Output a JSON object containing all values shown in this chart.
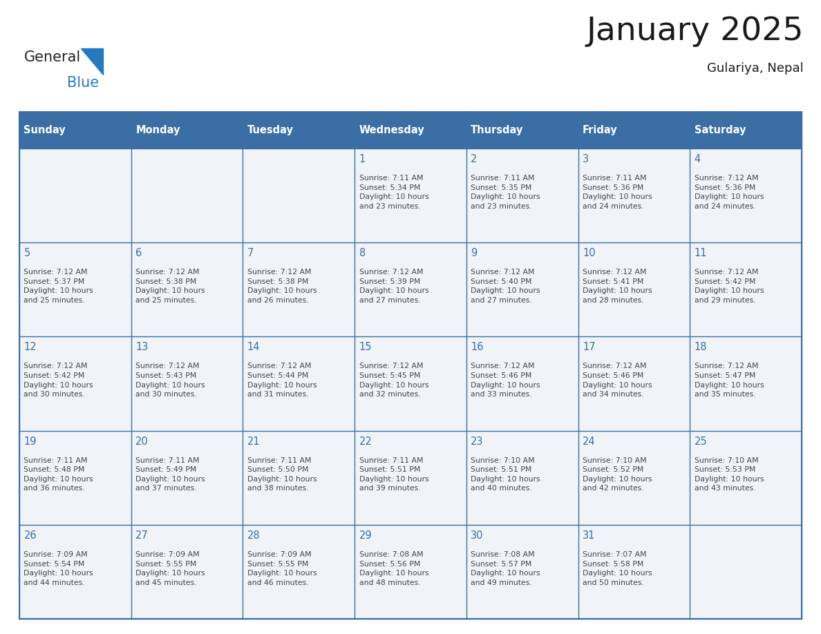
{
  "title": "January 2025",
  "subtitle": "Gulariya, Nepal",
  "days_of_week": [
    "Sunday",
    "Monday",
    "Tuesday",
    "Wednesday",
    "Thursday",
    "Friday",
    "Saturday"
  ],
  "header_bg_color": "#3A6EA5",
  "header_text_color": "#FFFFFF",
  "cell_bg_color": "#F0F4F8",
  "grid_line_color": "#3A6EA5",
  "day_number_color": "#3A6EA5",
  "text_color": "#444444",
  "title_color": "#1a1a1a",
  "logo_general_color": "#222222",
  "logo_blue_color": "#2878BE",
  "calendar_data": [
    [
      {
        "day": null,
        "info": null
      },
      {
        "day": null,
        "info": null
      },
      {
        "day": null,
        "info": null
      },
      {
        "day": 1,
        "info": "Sunrise: 7:11 AM\nSunset: 5:34 PM\nDaylight: 10 hours\nand 23 minutes."
      },
      {
        "day": 2,
        "info": "Sunrise: 7:11 AM\nSunset: 5:35 PM\nDaylight: 10 hours\nand 23 minutes."
      },
      {
        "day": 3,
        "info": "Sunrise: 7:11 AM\nSunset: 5:36 PM\nDaylight: 10 hours\nand 24 minutes."
      },
      {
        "day": 4,
        "info": "Sunrise: 7:12 AM\nSunset: 5:36 PM\nDaylight: 10 hours\nand 24 minutes."
      }
    ],
    [
      {
        "day": 5,
        "info": "Sunrise: 7:12 AM\nSunset: 5:37 PM\nDaylight: 10 hours\nand 25 minutes."
      },
      {
        "day": 6,
        "info": "Sunrise: 7:12 AM\nSunset: 5:38 PM\nDaylight: 10 hours\nand 25 minutes."
      },
      {
        "day": 7,
        "info": "Sunrise: 7:12 AM\nSunset: 5:38 PM\nDaylight: 10 hours\nand 26 minutes."
      },
      {
        "day": 8,
        "info": "Sunrise: 7:12 AM\nSunset: 5:39 PM\nDaylight: 10 hours\nand 27 minutes."
      },
      {
        "day": 9,
        "info": "Sunrise: 7:12 AM\nSunset: 5:40 PM\nDaylight: 10 hours\nand 27 minutes."
      },
      {
        "day": 10,
        "info": "Sunrise: 7:12 AM\nSunset: 5:41 PM\nDaylight: 10 hours\nand 28 minutes."
      },
      {
        "day": 11,
        "info": "Sunrise: 7:12 AM\nSunset: 5:42 PM\nDaylight: 10 hours\nand 29 minutes."
      }
    ],
    [
      {
        "day": 12,
        "info": "Sunrise: 7:12 AM\nSunset: 5:42 PM\nDaylight: 10 hours\nand 30 minutes."
      },
      {
        "day": 13,
        "info": "Sunrise: 7:12 AM\nSunset: 5:43 PM\nDaylight: 10 hours\nand 30 minutes."
      },
      {
        "day": 14,
        "info": "Sunrise: 7:12 AM\nSunset: 5:44 PM\nDaylight: 10 hours\nand 31 minutes."
      },
      {
        "day": 15,
        "info": "Sunrise: 7:12 AM\nSunset: 5:45 PM\nDaylight: 10 hours\nand 32 minutes."
      },
      {
        "day": 16,
        "info": "Sunrise: 7:12 AM\nSunset: 5:46 PM\nDaylight: 10 hours\nand 33 minutes."
      },
      {
        "day": 17,
        "info": "Sunrise: 7:12 AM\nSunset: 5:46 PM\nDaylight: 10 hours\nand 34 minutes."
      },
      {
        "day": 18,
        "info": "Sunrise: 7:12 AM\nSunset: 5:47 PM\nDaylight: 10 hours\nand 35 minutes."
      }
    ],
    [
      {
        "day": 19,
        "info": "Sunrise: 7:11 AM\nSunset: 5:48 PM\nDaylight: 10 hours\nand 36 minutes."
      },
      {
        "day": 20,
        "info": "Sunrise: 7:11 AM\nSunset: 5:49 PM\nDaylight: 10 hours\nand 37 minutes."
      },
      {
        "day": 21,
        "info": "Sunrise: 7:11 AM\nSunset: 5:50 PM\nDaylight: 10 hours\nand 38 minutes."
      },
      {
        "day": 22,
        "info": "Sunrise: 7:11 AM\nSunset: 5:51 PM\nDaylight: 10 hours\nand 39 minutes."
      },
      {
        "day": 23,
        "info": "Sunrise: 7:10 AM\nSunset: 5:51 PM\nDaylight: 10 hours\nand 40 minutes."
      },
      {
        "day": 24,
        "info": "Sunrise: 7:10 AM\nSunset: 5:52 PM\nDaylight: 10 hours\nand 42 minutes."
      },
      {
        "day": 25,
        "info": "Sunrise: 7:10 AM\nSunset: 5:53 PM\nDaylight: 10 hours\nand 43 minutes."
      }
    ],
    [
      {
        "day": 26,
        "info": "Sunrise: 7:09 AM\nSunset: 5:54 PM\nDaylight: 10 hours\nand 44 minutes."
      },
      {
        "day": 27,
        "info": "Sunrise: 7:09 AM\nSunset: 5:55 PM\nDaylight: 10 hours\nand 45 minutes."
      },
      {
        "day": 28,
        "info": "Sunrise: 7:09 AM\nSunset: 5:55 PM\nDaylight: 10 hours\nand 46 minutes."
      },
      {
        "day": 29,
        "info": "Sunrise: 7:08 AM\nSunset: 5:56 PM\nDaylight: 10 hours\nand 48 minutes."
      },
      {
        "day": 30,
        "info": "Sunrise: 7:08 AM\nSunset: 5:57 PM\nDaylight: 10 hours\nand 49 minutes."
      },
      {
        "day": 31,
        "info": "Sunrise: 7:07 AM\nSunset: 5:58 PM\nDaylight: 10 hours\nand 50 minutes."
      },
      {
        "day": null,
        "info": null
      }
    ]
  ],
  "figsize": [
    11.88,
    9.18
  ],
  "dpi": 100
}
